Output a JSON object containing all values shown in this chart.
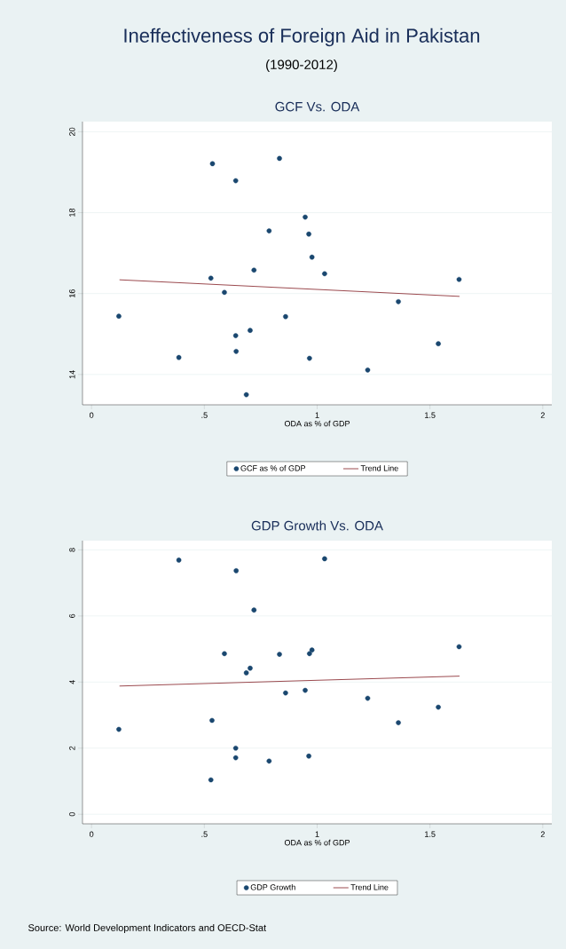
{
  "chart_data": [
    {
      "type": "scatter",
      "title": "GCF Vs. ODA",
      "xlabel": "ODA as % of GDP",
      "annotations": [
        "Ineffectiveness of Foreign Aid in Pakistan",
        "(1990-2012)"
      ],
      "xlim": [
        -0.04,
        2.04
      ],
      "xticks": [
        0,
        {
          "value": 0.5,
          "label": ".5"
        },
        1,
        1.5,
        2
      ],
      "ylim": [
        13.25,
        20.25
      ],
      "yticks": [
        14,
        16,
        18,
        20
      ],
      "grid": "y",
      "legend": "bottom",
      "series": [
        {
          "name": "GCF as % of GDP",
          "color": "#1a476f",
          "marker": "circle",
          "x": [
            0.536,
            0.833,
            0.639,
            0.947,
            0.787,
            0.963,
            0.977,
            0.72,
            1.033,
            0.529,
            1.629,
            0.589,
            1.36,
            0.121,
            0.86,
            0.703,
            0.639,
            1.537,
            0.641,
            0.387,
            0.966,
            1.224,
            0.686
          ],
          "values": [
            19.21,
            19.34,
            18.79,
            17.89,
            17.55,
            17.47,
            16.9,
            16.58,
            16.49,
            16.38,
            16.35,
            16.03,
            15.8,
            15.44,
            15.43,
            15.09,
            14.96,
            14.76,
            14.57,
            14.42,
            14.4,
            14.11,
            13.5
          ]
        },
        {
          "name": "Trend Line",
          "type": "line",
          "marker": "none",
          "color": "#90353b",
          "x": [
            0.124,
            1.631
          ],
          "values": [
            16.34,
            15.93
          ]
        }
      ]
    },
    {
      "type": "scatter",
      "title": "GDP Growth Vs. ODA",
      "xlabel": "ODA as % of GDP",
      "annotations": [
        "Source: World Development Indicators and OECD-Stat"
      ],
      "xlim": [
        -0.04,
        2.04
      ],
      "xticks": [
        0,
        {
          "value": 0.5,
          "label": ".5"
        },
        1,
        1.5,
        2
      ],
      "ylim": [
        -0.29,
        8.28
      ],
      "yticks": [
        0,
        2,
        4,
        6,
        8
      ],
      "grid": "y",
      "legend": "bottom",
      "series": [
        {
          "name": "GDP Growth",
          "color": "#1a476f",
          "marker": "circle",
          "x": [
            0.387,
            1.033,
            0.641,
            0.72,
            1.629,
            0.977,
            0.589,
            0.833,
            0.966,
            0.703,
            0.686,
            0.947,
            0.86,
            1.224,
            1.537,
            0.534,
            1.36,
            0.121,
            0.639,
            0.639,
            0.787,
            0.963,
            0.529
          ],
          "values": [
            7.69,
            7.73,
            7.37,
            6.18,
            5.07,
            4.97,
            4.86,
            4.84,
            4.86,
            4.42,
            4.28,
            3.75,
            3.67,
            3.51,
            3.24,
            2.84,
            2.77,
            2.57,
            2.0,
            1.71,
            1.61,
            1.76,
            1.04
          ]
        },
        {
          "name": "Trend Line",
          "type": "line",
          "marker": "none",
          "color": "#90353b",
          "x": [
            0.124,
            1.631
          ],
          "values": [
            3.88,
            4.18
          ]
        }
      ]
    }
  ]
}
